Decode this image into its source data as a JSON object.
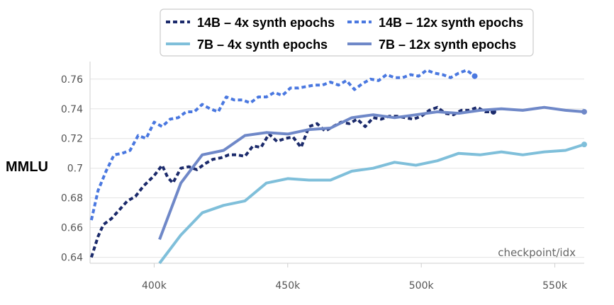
{
  "chart_data": {
    "type": "line",
    "title": "",
    "xlabel": "checkpoint/idx",
    "ylabel": "MMLU",
    "xlim": [
      376000,
      561000
    ],
    "ylim": [
      0.636,
      0.768
    ],
    "xticks": [
      400000,
      450000,
      500000,
      550000
    ],
    "xtick_labels": [
      "400k",
      "450k",
      "500k",
      "550k"
    ],
    "yticks": [
      0.64,
      0.66,
      0.68,
      0.7,
      0.72,
      0.74,
      0.76
    ],
    "ytick_labels": [
      "0.64",
      "0.66",
      "0.68",
      "0.7",
      "0.72",
      "0.74",
      "0.76"
    ],
    "grid": "horizontal",
    "legend_position": "top",
    "series": [
      {
        "name": "14B – 4x synth epochs",
        "color": "#1b2a6b",
        "style": "dotted",
        "x": [
          376500,
          379000,
          381000,
          384000,
          387000,
          390000,
          393000,
          396000,
          400000,
          403000,
          405000,
          407000,
          410000,
          413000,
          416000,
          419000,
          422000,
          425000,
          428000,
          431000,
          434000,
          437000,
          440000,
          443000,
          446000,
          449000,
          452000,
          455000,
          458000,
          461000,
          464000,
          467000,
          470000,
          473000,
          476000,
          479000,
          482000,
          485000,
          488000,
          491000,
          494000,
          497000,
          500000,
          503000,
          506000,
          509000,
          512000,
          515000,
          518000,
          521000,
          524000,
          527000
        ],
        "values": [
          0.64,
          0.654,
          0.662,
          0.666,
          0.672,
          0.678,
          0.681,
          0.688,
          0.695,
          0.702,
          0.694,
          0.69,
          0.7,
          0.701,
          0.699,
          0.703,
          0.706,
          0.707,
          0.709,
          0.709,
          0.708,
          0.715,
          0.714,
          0.723,
          0.718,
          0.72,
          0.721,
          0.714,
          0.728,
          0.73,
          0.725,
          0.728,
          0.731,
          0.73,
          0.733,
          0.728,
          0.734,
          0.733,
          0.735,
          0.735,
          0.734,
          0.733,
          0.735,
          0.739,
          0.741,
          0.737,
          0.736,
          0.739,
          0.739,
          0.741,
          0.738,
          0.738
        ]
      },
      {
        "name": "14B – 12x synth epochs",
        "color": "#4a78e0",
        "style": "dotted",
        "x": [
          376500,
          379000,
          382000,
          385000,
          388000,
          391000,
          394000,
          397000,
          400000,
          403000,
          406000,
          409000,
          412000,
          415000,
          418000,
          421000,
          424000,
          427000,
          430000,
          433000,
          436000,
          439000,
          442000,
          445000,
          448000,
          451000,
          454000,
          457000,
          460000,
          463000,
          466000,
          469000,
          472000,
          475000,
          478000,
          481000,
          484000,
          487000,
          490000,
          493000,
          496000,
          499000,
          502000,
          505000,
          508000,
          511000,
          514000,
          517000,
          520000
        ],
        "values": [
          0.665,
          0.685,
          0.698,
          0.709,
          0.71,
          0.712,
          0.722,
          0.72,
          0.731,
          0.728,
          0.733,
          0.734,
          0.738,
          0.738,
          0.743,
          0.74,
          0.738,
          0.748,
          0.746,
          0.746,
          0.744,
          0.748,
          0.748,
          0.751,
          0.749,
          0.754,
          0.754,
          0.755,
          0.756,
          0.756,
          0.758,
          0.756,
          0.759,
          0.753,
          0.757,
          0.76,
          0.759,
          0.763,
          0.761,
          0.761,
          0.763,
          0.762,
          0.766,
          0.764,
          0.763,
          0.761,
          0.764,
          0.766,
          0.762
        ]
      },
      {
        "name": "7B – 4x synth epochs",
        "color": "#7fbfda",
        "style": "solid",
        "x": [
          402000,
          410000,
          418000,
          426000,
          434000,
          442000,
          450000,
          458000,
          466000,
          474000,
          482000,
          490000,
          498000,
          506000,
          514000,
          522000,
          530000,
          538000,
          546000,
          554000,
          561000
        ],
        "values": [
          0.636,
          0.655,
          0.67,
          0.675,
          0.678,
          0.69,
          0.693,
          0.692,
          0.692,
          0.698,
          0.7,
          0.704,
          0.702,
          0.705,
          0.71,
          0.709,
          0.711,
          0.709,
          0.711,
          0.712,
          0.716
        ]
      },
      {
        "name": "7B – 12x synth epochs",
        "color": "#6f88c8",
        "style": "solid",
        "x": [
          402000,
          410000,
          418000,
          426000,
          434000,
          442000,
          450000,
          458000,
          466000,
          474000,
          482000,
          490000,
          498000,
          506000,
          514000,
          522000,
          530000,
          538000,
          546000,
          554000,
          561000
        ],
        "values": [
          0.652,
          0.69,
          0.709,
          0.712,
          0.722,
          0.724,
          0.723,
          0.726,
          0.727,
          0.734,
          0.736,
          0.734,
          0.736,
          0.738,
          0.737,
          0.739,
          0.74,
          0.739,
          0.741,
          0.739,
          0.738
        ]
      }
    ]
  }
}
